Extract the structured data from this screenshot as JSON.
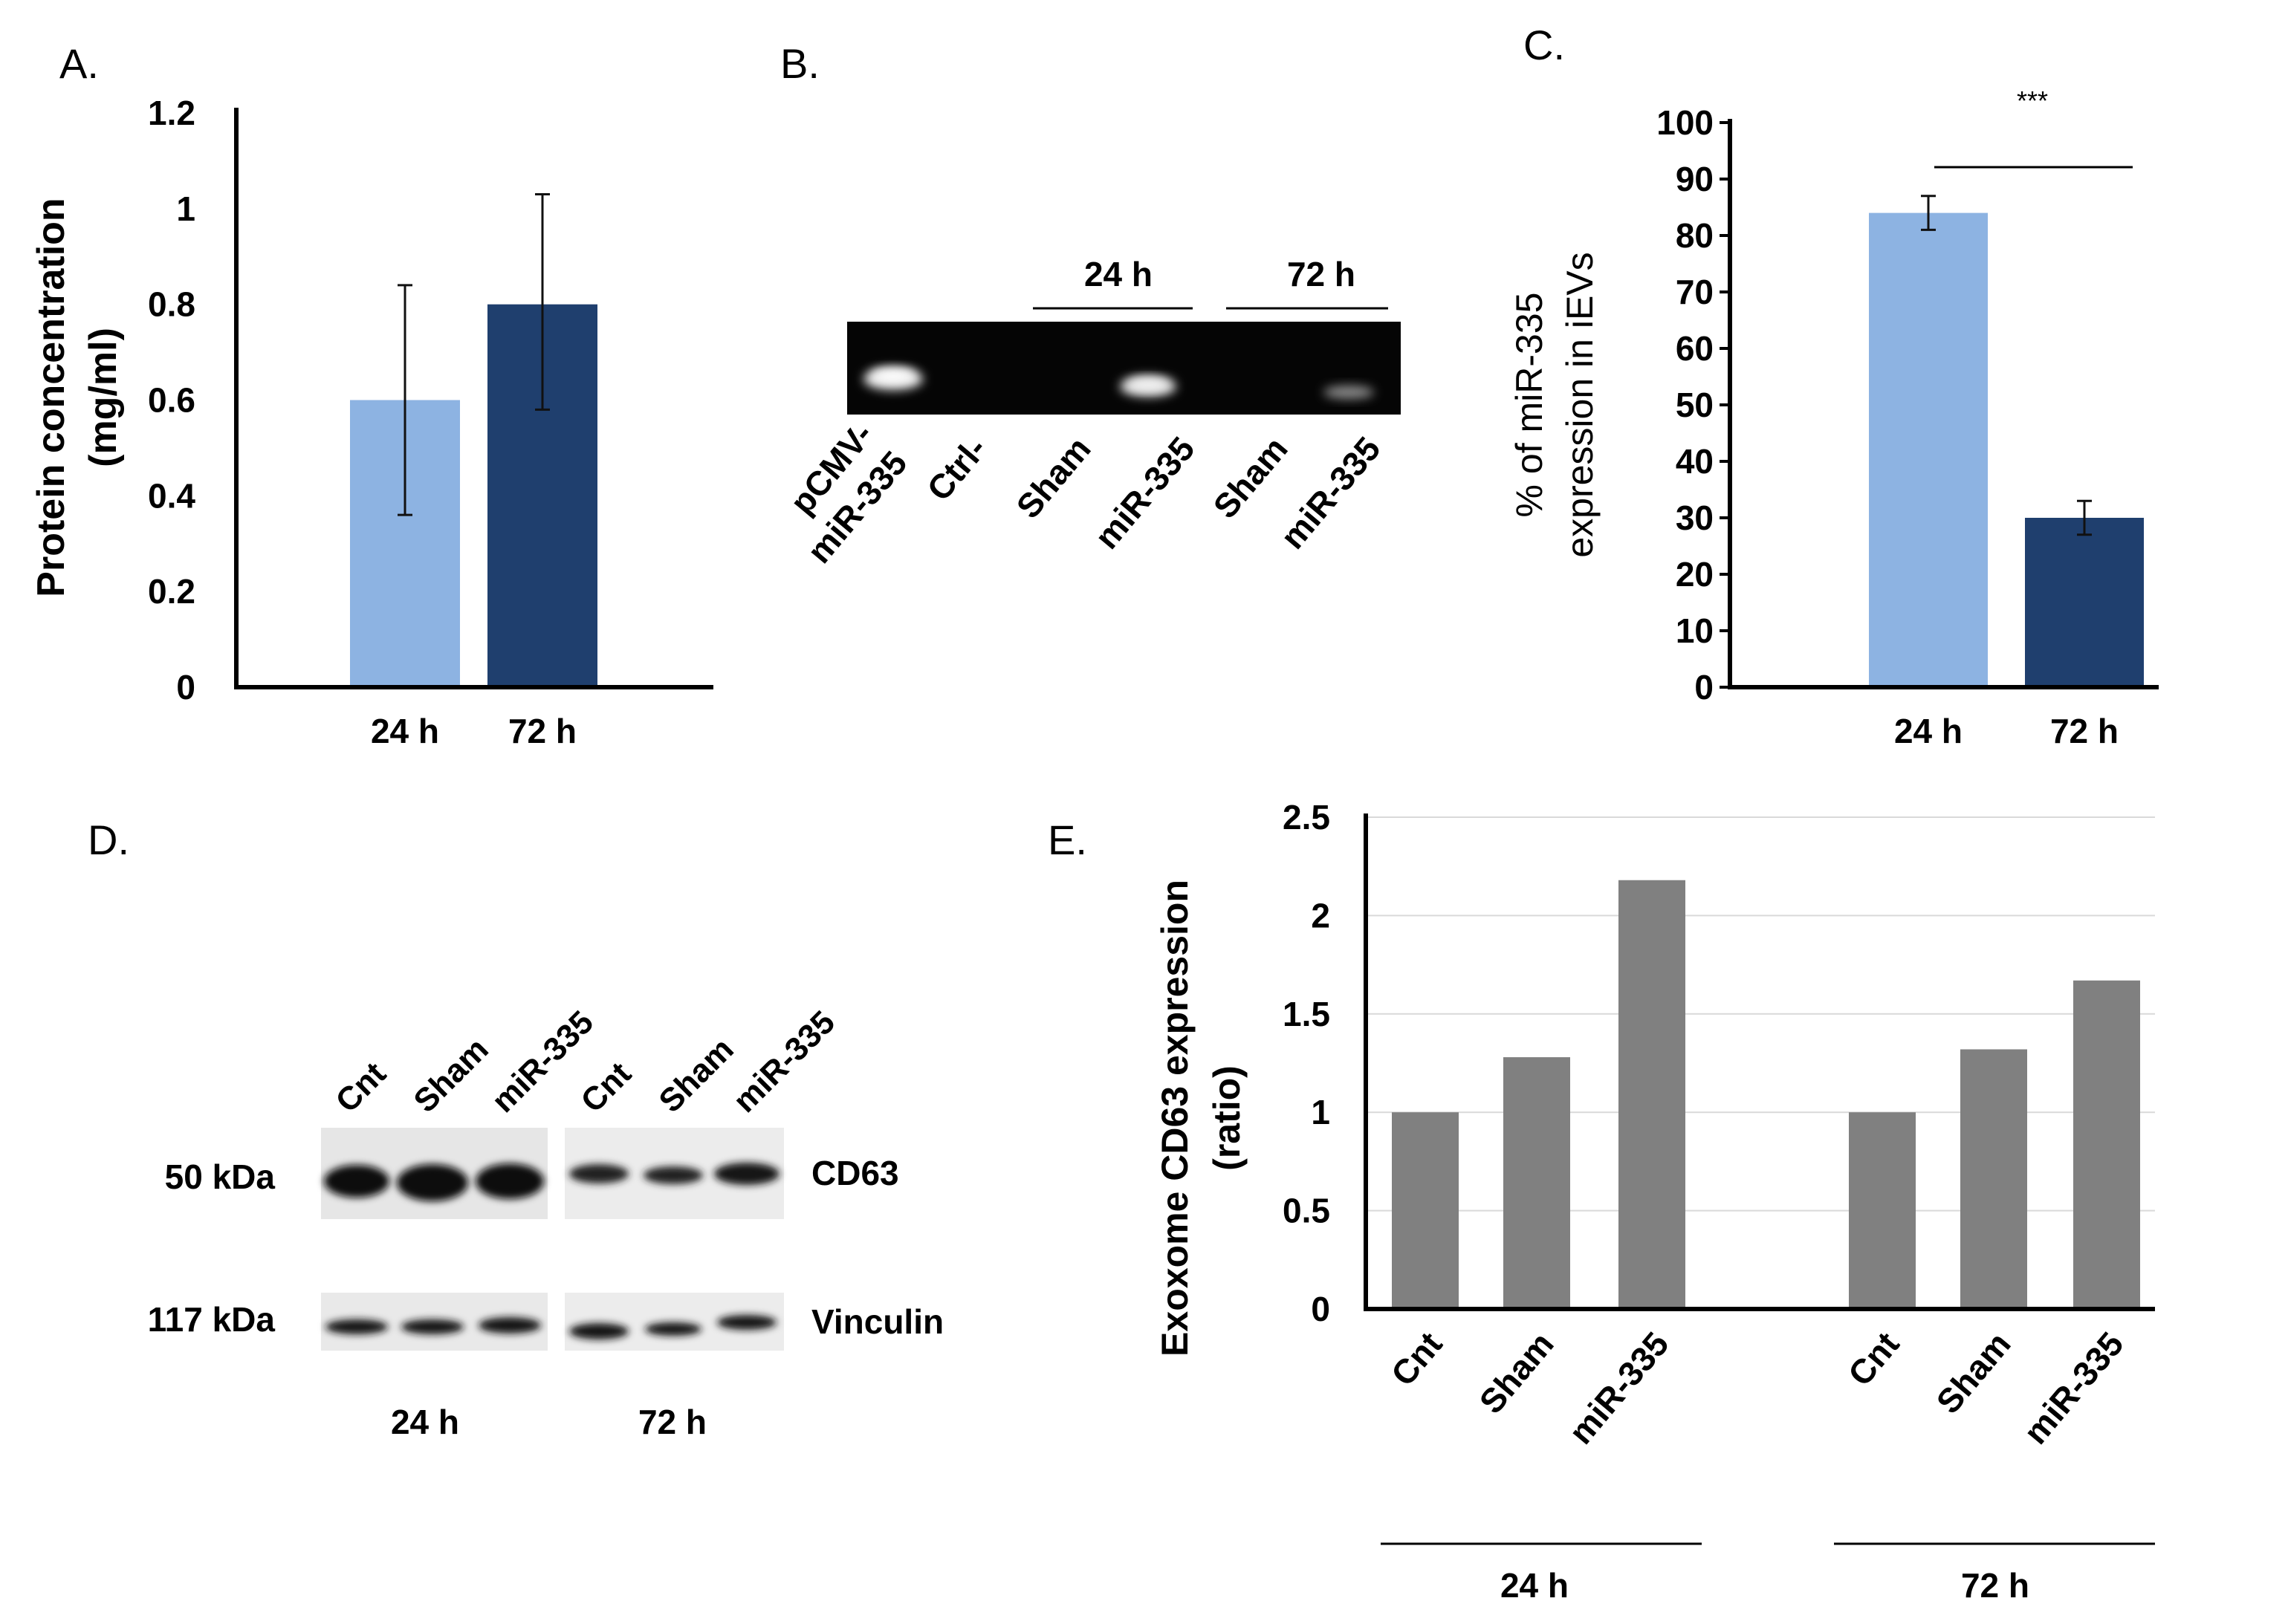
{
  "figure": {
    "panel_a": {
      "letter": "A.",
      "title": "",
      "ylabel_line1": "Protein concentration",
      "ylabel_line2": "(mg/ml)",
      "type": "bar",
      "categories": [
        "24 h",
        "72 h"
      ],
      "values": [
        0.6,
        0.8
      ],
      "errors_upper": [
        0.84,
        1.03
      ],
      "errors_lower": [
        0.36,
        0.58
      ],
      "ylim": [
        0,
        1.2
      ],
      "yticks": [
        "0",
        "0.2",
        "0.4",
        "0.6",
        "0.8",
        "1",
        "1.2"
      ],
      "colors": [
        "#8db3e2",
        "#1f3f6e"
      ]
    },
    "panel_b": {
      "letter": "B.",
      "group_labels": [
        "24 h",
        "72 h"
      ],
      "lanes": [
        "pCMV-\nmiR-335",
        "Ctrl-",
        "Sham",
        "miR-335",
        "Sham",
        "miR-335"
      ],
      "lane_line1": [
        "pCMV-",
        "Ctrl-",
        "Sham",
        "miR-335",
        "Sham",
        "miR-335"
      ],
      "lane_line2": [
        "miR-335",
        "",
        "",
        "",
        "",
        ""
      ]
    },
    "panel_c": {
      "letter": "C.",
      "ylabel_line1": "% of miR-335",
      "ylabel_line2": "expression in iEVs",
      "type": "bar",
      "categories": [
        "24 h",
        "72 h"
      ],
      "values": [
        84,
        30
      ],
      "errors_upper": [
        87,
        33
      ],
      "errors_lower": [
        81,
        27
      ],
      "ylim": [
        0,
        100
      ],
      "yticks": [
        "0",
        "10",
        "20",
        "30",
        "40",
        "50",
        "60",
        "70",
        "80",
        "90",
        "100"
      ],
      "significance": "***",
      "colors": [
        "#8db3e2",
        "#1f3f6e"
      ]
    },
    "panel_d": {
      "letter": "D.",
      "lane_labels": [
        "Cnt",
        "Sham",
        "miR-335",
        "Cnt",
        "Sham",
        "miR-335"
      ],
      "markers": [
        "50 kDa",
        "117 kDa"
      ],
      "proteins": [
        "CD63",
        "Vinculin"
      ],
      "timepoints": [
        "24 h",
        "72 h"
      ]
    },
    "panel_e": {
      "letter": "E.",
      "ylabel_line1": "Exoxome CD63 expression",
      "ylabel_line2": "(ratio)",
      "type": "bar",
      "categories": [
        "Cnt",
        "Sham",
        "miR-335",
        "Cnt",
        "Sham",
        "miR-335"
      ],
      "values": [
        1.0,
        1.28,
        2.18,
        1.0,
        1.32,
        1.67
      ],
      "ylim": [
        0,
        2.5
      ],
      "yticks": [
        "0",
        "0.5",
        "1",
        "1.5",
        "2",
        "2.5"
      ],
      "groups": [
        "24 h",
        "72 h"
      ],
      "color": "#808080"
    }
  },
  "chart_data": [
    {
      "type": "bar",
      "title": "A.",
      "ylabel": "Protein concentration (mg/ml)",
      "categories": [
        "24 h",
        "72 h"
      ],
      "values": [
        0.6,
        0.8
      ],
      "errors": [
        0.24,
        0.225
      ],
      "ylim": [
        0,
        1.2
      ]
    },
    {
      "type": "bar",
      "title": "C.",
      "ylabel": "% of miR-335 expression in iEVs",
      "categories": [
        "24 h",
        "72 h"
      ],
      "values": [
        84,
        30
      ],
      "errors": [
        3,
        3
      ],
      "ylim": [
        0,
        100
      ],
      "annotations": [
        "***"
      ]
    },
    {
      "type": "bar",
      "title": "E.",
      "ylabel": "Exoxome CD63 expression (ratio)",
      "categories": [
        "Cnt",
        "Sham",
        "miR-335",
        "Cnt",
        "Sham",
        "miR-335"
      ],
      "groups": [
        "24 h",
        "72 h"
      ],
      "values": [
        1.0,
        1.28,
        2.18,
        1.0,
        1.32,
        1.67
      ],
      "ylim": [
        0,
        2.5
      ],
      "grid": true
    }
  ]
}
